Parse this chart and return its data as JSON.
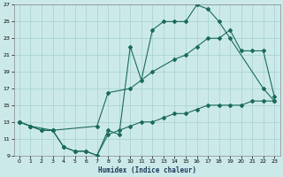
{
  "xlabel": "Humidex (Indice chaleur)",
  "bg_color": "#cce9e9",
  "grid_color": "#aad4d4",
  "line_color": "#1a6b5a",
  "xlim": [
    -0.5,
    23.5
  ],
  "ylim": [
    9,
    27
  ],
  "xticks": [
    0,
    1,
    2,
    3,
    4,
    5,
    6,
    7,
    8,
    9,
    10,
    11,
    12,
    13,
    14,
    15,
    16,
    17,
    18,
    19,
    20,
    21,
    22,
    23
  ],
  "yticks": [
    9,
    11,
    13,
    15,
    17,
    19,
    21,
    23,
    25,
    27
  ],
  "line1_x": [
    0,
    1,
    2,
    3,
    4,
    5,
    6,
    7,
    8,
    9,
    10,
    11,
    12,
    13,
    14,
    15,
    16,
    17,
    18,
    19,
    22,
    23
  ],
  "line1_y": [
    13,
    12.5,
    12,
    12,
    10,
    9.5,
    9.5,
    9,
    12,
    11.5,
    22,
    18,
    24,
    25,
    25,
    25,
    27,
    26.5,
    25,
    23,
    17,
    15.5
  ],
  "line2_x": [
    0,
    1,
    3,
    7,
    8,
    10,
    12,
    14,
    15,
    16,
    17,
    18,
    19,
    20,
    21,
    22,
    23
  ],
  "line2_y": [
    13,
    12.5,
    12,
    12.5,
    16.5,
    17,
    19,
    20.5,
    21,
    22,
    23,
    23,
    24,
    21.5,
    21.5,
    21.5,
    16
  ],
  "line3_x": [
    0,
    1,
    2,
    3,
    4,
    5,
    6,
    7,
    8,
    9,
    10,
    11,
    12,
    13,
    14,
    15,
    16,
    17,
    18,
    19,
    20,
    21,
    22,
    23
  ],
  "line3_y": [
    13,
    12.5,
    12,
    12,
    10,
    9.5,
    9.5,
    9,
    11.5,
    12,
    12.5,
    13,
    13,
    13.5,
    14,
    14,
    14.5,
    15,
    15,
    15,
    15,
    15.5,
    15.5,
    15.5
  ]
}
